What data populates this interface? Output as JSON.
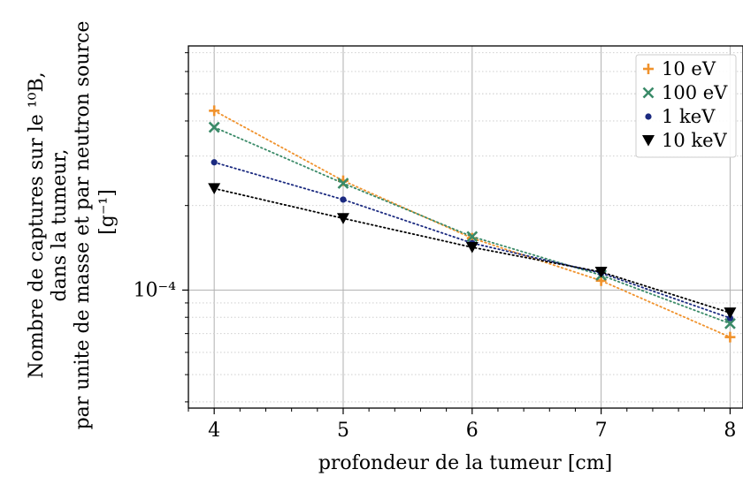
{
  "chart_data": {
    "type": "line",
    "x_label": "profondeur de la tumeur [cm]",
    "y_label_lines": [
      "Nombre de captures sur le ¹⁰B,",
      "dans la tumeur,",
      "par unite de masse et par neutron source",
      "[g⁻¹]"
    ],
    "y_scale": "log",
    "x_ticks": [
      "4",
      "5",
      "6",
      "7",
      "8"
    ],
    "y_tick_label": "10⁻⁴",
    "y_tick_value": 0.0001,
    "xlim": [
      3.8,
      8.1
    ],
    "ylim": [
      3.8e-05,
      0.00074
    ],
    "grid": true,
    "legend_position": "upper right",
    "series": [
      {
        "name": "10 eV",
        "marker": "plus",
        "color": "#f0922c",
        "x": [
          4,
          5,
          6,
          7,
          8
        ],
        "y": [
          0.000435,
          0.000245,
          0.000153,
          0.000108,
          6.8e-05
        ]
      },
      {
        "name": "100 eV",
        "marker": "x",
        "color": "#3a8a68",
        "x": [
          4,
          5,
          6,
          7,
          8
        ],
        "y": [
          0.00038,
          0.00024,
          0.000155,
          0.000113,
          7.6e-05
        ]
      },
      {
        "name": "1 keV",
        "marker": "dot",
        "color": "#1b2a80",
        "x": [
          4,
          5,
          6,
          7,
          8
        ],
        "y": [
          0.000285,
          0.00021,
          0.000147,
          0.000115,
          7.95e-05
        ]
      },
      {
        "name": "10 keV",
        "marker": "triangle-down",
        "color": "#000000",
        "x": [
          4,
          5,
          6,
          7,
          8
        ],
        "y": [
          0.00023,
          0.00018,
          0.000142,
          0.000116,
          8.3e-05
        ]
      }
    ]
  }
}
